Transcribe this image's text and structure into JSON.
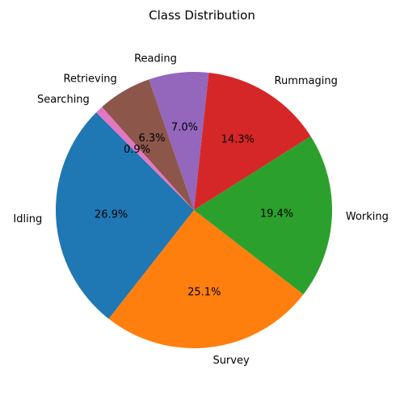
{
  "chart_data": {
    "type": "pie",
    "title": "Class Distribution",
    "start_angle": 135,
    "direction": "counterclockwise",
    "slices": [
      {
        "label": "Idling",
        "value": 26.9,
        "pct_label": "26.9%",
        "color": "#1f77b4"
      },
      {
        "label": "Survey",
        "value": 25.1,
        "pct_label": "25.1%",
        "color": "#ff7f0e"
      },
      {
        "label": "Working",
        "value": 19.4,
        "pct_label": "19.4%",
        "color": "#2ca02c"
      },
      {
        "label": "Rummaging",
        "value": 14.3,
        "pct_label": "14.3%",
        "color": "#d62728"
      },
      {
        "label": "Reading",
        "value": 7.0,
        "pct_label": "7.0%",
        "color": "#9467bd"
      },
      {
        "label": "Retrieving",
        "value": 6.3,
        "pct_label": "6.3%",
        "color": "#8c564b"
      },
      {
        "label": "Searching",
        "value": 0.9,
        "pct_label": "0.9%",
        "color": "#e377c2"
      }
    ]
  }
}
